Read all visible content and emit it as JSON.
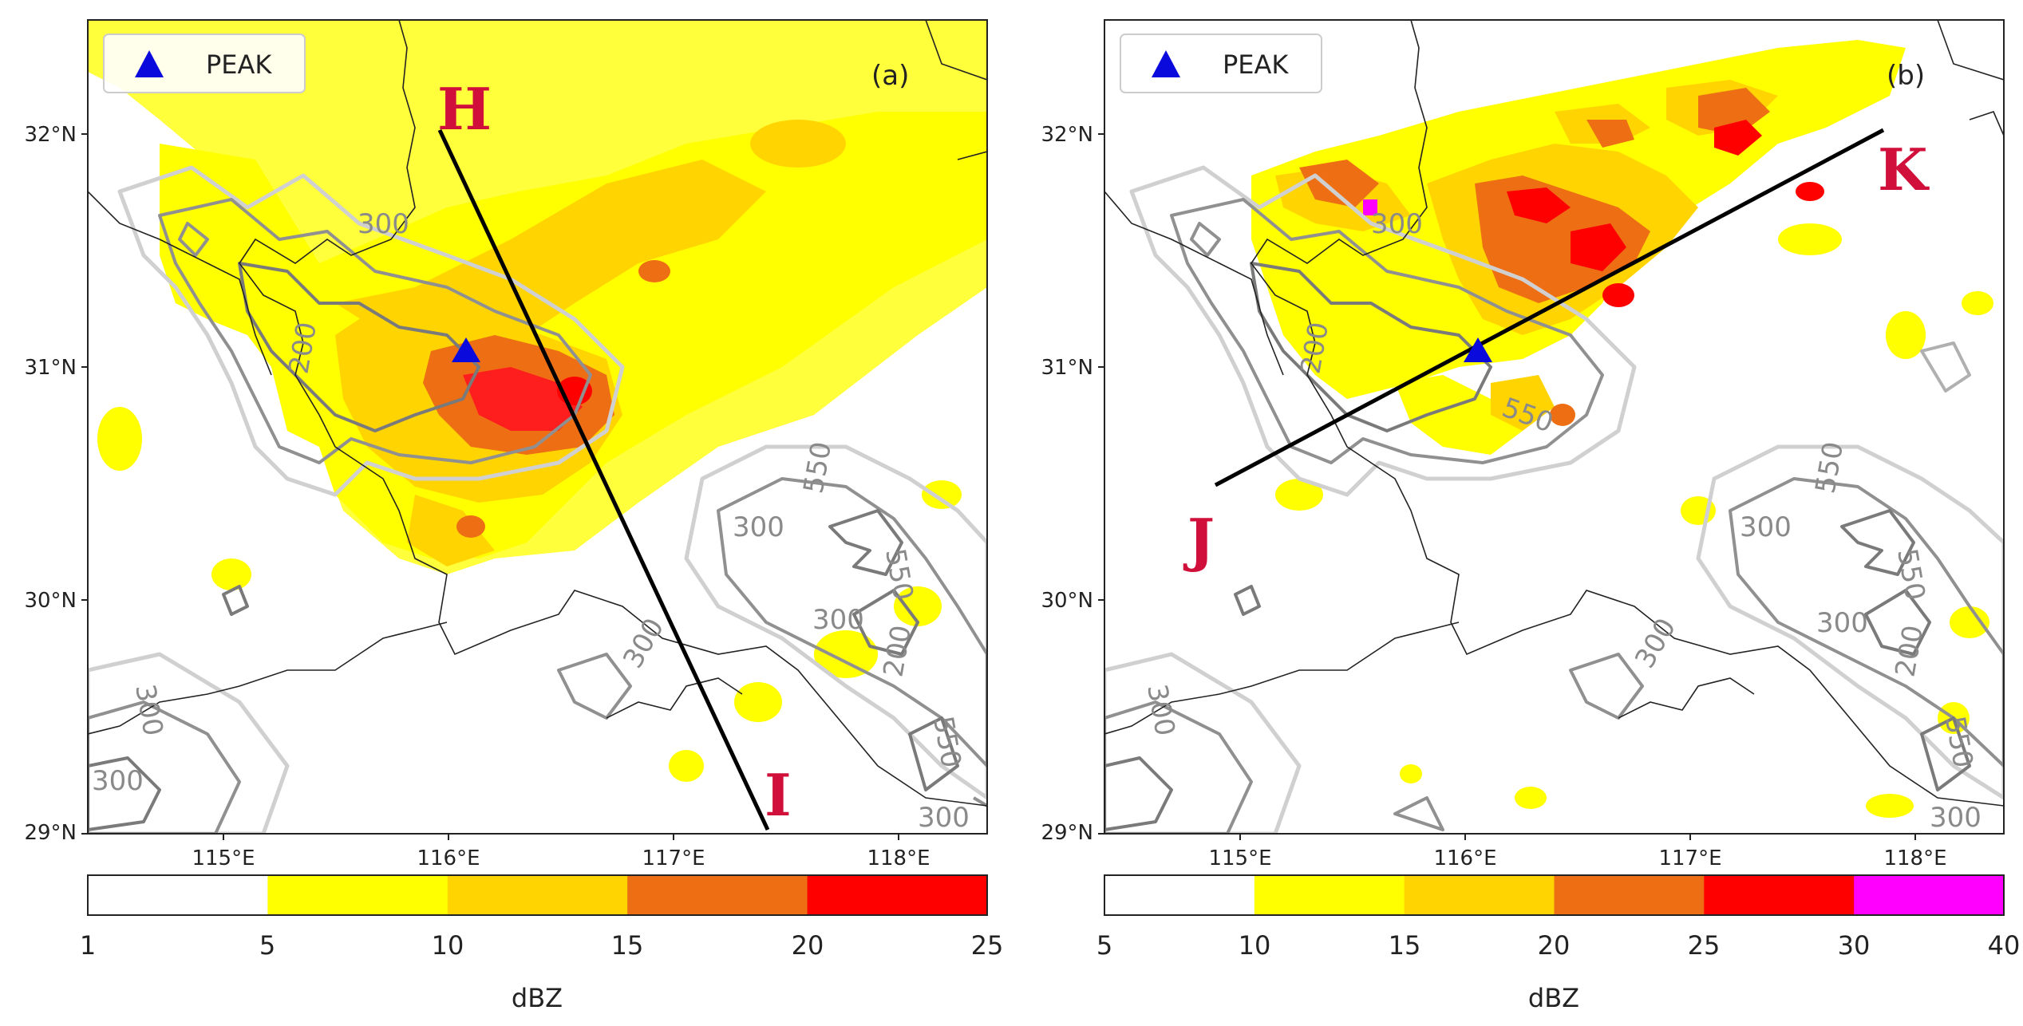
{
  "figure": "Radar reflectivity maps with cross-section lines",
  "panels": [
    {
      "id": "a",
      "panel_label": "(a)",
      "legend_label": "PEAK",
      "lat_ticks": [
        "32°N",
        "31°N",
        "30°N",
        "29°N"
      ],
      "lon_ticks": [
        "115°E",
        "116°E",
        "117°E",
        "118°E"
      ],
      "contour_labels": [
        "300",
        "300",
        "300",
        "550",
        "300",
        "550",
        "300",
        "300",
        "550",
        "300",
        "200",
        "200"
      ],
      "section_start": "H",
      "section_end": "I",
      "colorbar": {
        "ticks": [
          "1",
          "5",
          "10",
          "15",
          "20",
          "25"
        ],
        "colors": [
          "#ffffff",
          "#ffff00",
          "#ffd400",
          "#ee6e14",
          "#ff0000"
        ],
        "label": "dBZ"
      }
    },
    {
      "id": "b",
      "panel_label": "(b)",
      "legend_label": "PEAK",
      "lat_ticks": [
        "32°N",
        "31°N",
        "30°N",
        "29°N"
      ],
      "lon_ticks": [
        "115°E",
        "116°E",
        "117°E",
        "118°E"
      ],
      "contour_labels": [
        "300",
        "550",
        "300",
        "550",
        "550",
        "300",
        "300",
        "300",
        "550",
        "300",
        "200",
        "200"
      ],
      "section_start": "J",
      "section_end": "K",
      "colorbar": {
        "ticks": [
          "5",
          "10",
          "15",
          "20",
          "25",
          "30",
          "40"
        ],
        "colors": [
          "#ffffff",
          "#ffff00",
          "#ffd400",
          "#ee6e14",
          "#ff0000",
          "#ff00ff"
        ],
        "label": "dBZ"
      }
    }
  ]
}
